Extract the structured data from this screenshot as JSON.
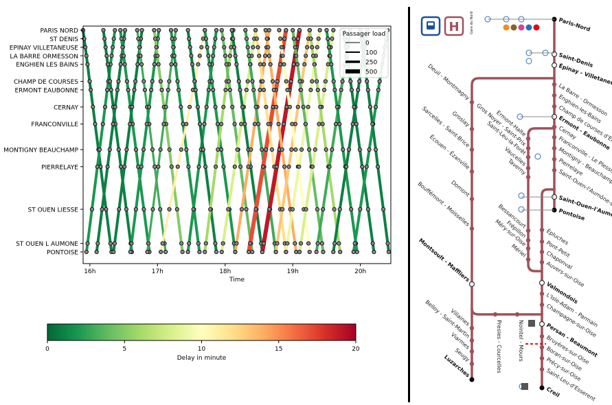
{
  "chart_data": {
    "type": "line",
    "title": "",
    "xlabel": "Time",
    "ylabel": "",
    "x_ticks": [
      "16h",
      "17h",
      "18h",
      "19h",
      "20h"
    ],
    "x_range_hours": [
      15.9,
      20.45
    ],
    "stations": [
      {
        "name": "PARIS NORD",
        "pos": 0
      },
      {
        "name": "ST DENIS",
        "pos": 1
      },
      {
        "name": "EPINAY VILLETANEUSE",
        "pos": 2
      },
      {
        "name": "LA BARRE ORMESSON",
        "pos": 3
      },
      {
        "name": "ENGHIEN LES BAINS",
        "pos": 4
      },
      {
        "name": "CHAMP DE COURSES",
        "pos": 6
      },
      {
        "name": "ERMONT EAUBONNE",
        "pos": 7
      },
      {
        "name": "CERNAY",
        "pos": 9
      },
      {
        "name": "FRANCONVILLE",
        "pos": 11
      },
      {
        "name": "MONTIGNY BEAUCHAMP",
        "pos": 14
      },
      {
        "name": "PIERRELAYE",
        "pos": 16
      },
      {
        "name": "ST OUEN LIESSE",
        "pos": 21
      },
      {
        "name": "ST OUEN L AUMONE",
        "pos": 25
      },
      {
        "name": "PONTOISE",
        "pos": 26
      }
    ],
    "legend": {
      "title": "Passager load",
      "placement": "top-right",
      "entries": [
        {
          "label": "0",
          "width": 1
        },
        {
          "label": "100",
          "width": 2
        },
        {
          "label": "250",
          "width": 3.5
        },
        {
          "label": "500",
          "width": 6
        }
      ]
    },
    "colorbar": {
      "label": "Delay in minute",
      "ticks": [
        "0",
        "5",
        "10",
        "15",
        "20"
      ],
      "range": [
        0,
        20
      ],
      "colormap": "RdYlGn_r"
    },
    "trips": [
      {
        "dir": "out",
        "start": 15.9,
        "dur": 0.42,
        "delay": 1,
        "load": 3
      },
      {
        "dir": "in",
        "start": 15.95,
        "dur": 0.42,
        "delay": 2,
        "load": 3
      },
      {
        "dir": "out",
        "start": 16.2,
        "dur": 0.42,
        "delay": 1,
        "load": 3
      },
      {
        "dir": "in",
        "start": 16.1,
        "dur": 0.42,
        "delay": 1,
        "load": 3
      },
      {
        "dir": "out",
        "start": 16.45,
        "dur": 0.43,
        "delay": 2,
        "load": 3
      },
      {
        "dir": "in",
        "start": 16.35,
        "dur": 0.42,
        "delay": 1,
        "load": 3
      },
      {
        "dir": "out",
        "start": 16.7,
        "dur": 0.42,
        "delay": 3,
        "load": 2
      },
      {
        "dir": "in",
        "start": 16.6,
        "dur": 0.42,
        "delay": 2,
        "load": 3
      },
      {
        "dir": "out",
        "start": 16.95,
        "dur": 0.42,
        "delay": 5,
        "load": 3
      },
      {
        "dir": "in",
        "start": 16.85,
        "dur": 0.42,
        "delay": 3,
        "load": 2
      },
      {
        "dir": "out",
        "start": 17.2,
        "dur": 0.42,
        "delay": 2,
        "load": 3
      },
      {
        "dir": "in",
        "start": 17.05,
        "dur": 0.65,
        "delay": 11,
        "load": 2
      },
      {
        "dir": "in",
        "start": 17.45,
        "dur": 0.42,
        "delay": 2,
        "load": 3
      },
      {
        "dir": "out",
        "start": 17.45,
        "dur": 0.42,
        "delay": 1,
        "load": 3
      },
      {
        "dir": "out",
        "start": 17.7,
        "dur": 0.45,
        "delay": 2,
        "load": 3
      },
      {
        "dir": "in",
        "start": 17.7,
        "dur": 0.42,
        "delay": 6,
        "load": 3
      },
      {
        "dir": "out",
        "start": 17.95,
        "dur": 0.45,
        "delay": 4,
        "load": 3
      },
      {
        "dir": "in",
        "start": 17.95,
        "dur": 0.5,
        "delay": 8,
        "load": 3
      },
      {
        "dir": "out",
        "start": 18.1,
        "dur": 0.45,
        "delay": 1,
        "load": 3
      },
      {
        "dir": "in",
        "start": 18.15,
        "dur": 0.5,
        "delay": 14,
        "load": 3
      },
      {
        "dir": "out",
        "start": 18.3,
        "dur": 0.45,
        "delay": 3,
        "load": 3
      },
      {
        "dir": "in",
        "start": 18.35,
        "dur": 0.55,
        "delay": 17,
        "load": 4
      },
      {
        "dir": "out",
        "start": 18.45,
        "dur": 0.45,
        "delay": 12,
        "load": 3
      },
      {
        "dir": "in",
        "start": 18.55,
        "dur": 0.55,
        "delay": 19,
        "load": 4
      },
      {
        "dir": "out",
        "start": 18.6,
        "dur": 0.45,
        "delay": 14,
        "load": 3
      },
      {
        "dir": "in",
        "start": 18.75,
        "dur": 0.5,
        "delay": 13,
        "load": 3
      },
      {
        "dir": "out",
        "start": 18.8,
        "dur": 0.45,
        "delay": 10,
        "load": 3
      },
      {
        "dir": "in",
        "start": 18.9,
        "dur": 0.5,
        "delay": 9,
        "load": 3
      },
      {
        "dir": "out",
        "start": 19.0,
        "dur": 0.45,
        "delay": 4,
        "load": 3
      },
      {
        "dir": "in",
        "start": 19.1,
        "dur": 0.5,
        "delay": 8,
        "load": 3
      },
      {
        "dir": "out",
        "start": 19.25,
        "dur": 0.45,
        "delay": 6,
        "load": 3
      },
      {
        "dir": "in",
        "start": 19.35,
        "dur": 0.5,
        "delay": 3,
        "load": 3
      },
      {
        "dir": "out",
        "start": 19.5,
        "dur": 0.45,
        "delay": 2,
        "load": 3
      },
      {
        "dir": "in",
        "start": 19.6,
        "dur": 0.5,
        "delay": 1,
        "load": 3
      },
      {
        "dir": "out",
        "start": 19.75,
        "dur": 0.45,
        "delay": 1,
        "load": 3
      },
      {
        "dir": "in",
        "start": 19.9,
        "dur": 0.5,
        "delay": 2,
        "load": 3
      },
      {
        "dir": "out",
        "start": 20.0,
        "dur": 0.42,
        "delay": 1,
        "load": 3
      }
    ]
  },
  "map": {
    "line_color": "#a0505a",
    "left_stations": [
      {
        "name": "Deuil - Montmagny",
        "bold": false
      },
      {
        "name": "Groslay",
        "bold": false
      },
      {
        "name": "Sarcelles - Saint-Brice",
        "bold": false
      },
      {
        "name": "Écouen - Ézanville",
        "bold": false
      },
      {
        "name": "Domont",
        "bold": false
      },
      {
        "name": "Bouffémont - Moisselles",
        "bold": false
      },
      {
        "name": "Montsoult - Maffliers",
        "bold": true
      },
      {
        "name": "Villaines",
        "bold": false
      },
      {
        "name": "Belloy - Saint-Martin",
        "bold": false
      },
      {
        "name": "Viarmes",
        "bold": false
      },
      {
        "name": "Seugy",
        "bold": false
      },
      {
        "name": "Luzarches",
        "bold": true
      }
    ],
    "middle_stations": [
      {
        "name": "Ermont-Halte",
        "bold": false
      },
      {
        "name": "Gros Noyer - Saint-Prix",
        "bold": false
      },
      {
        "name": "Saint-Leu-la-Forêt",
        "bold": false
      },
      {
        "name": "Vaucelles",
        "bold": false
      },
      {
        "name": "Taverny",
        "bold": false
      },
      {
        "name": "Bessancourt",
        "bold": false
      },
      {
        "name": "Frépillon",
        "bold": false
      },
      {
        "name": "Méry-sur-Oise",
        "bold": false
      },
      {
        "name": "Mériel",
        "bold": false
      }
    ],
    "branch_stations": [
      {
        "name": "Presles - Courcelles",
        "bold": false
      },
      {
        "name": "Nointel - Mours",
        "bold": false
      }
    ],
    "right_stations": [
      {
        "name": "Paris-Nord",
        "bold": true
      },
      {
        "name": "Saint-Denis",
        "bold": true
      },
      {
        "name": "Épinay - Villetaneuse",
        "bold": true
      },
      {
        "name": "La Barre - Ormesson",
        "bold": false
      },
      {
        "name": "Enghien-les-Bains",
        "bold": false
      },
      {
        "name": "Champ de courses d'Enghien",
        "bold": false
      },
      {
        "name": "Ermont - Eaubonne",
        "bold": true
      },
      {
        "name": "Cernay",
        "bold": false
      },
      {
        "name": "Franconville - Le Plessis",
        "bold": false
      },
      {
        "name": "Montigny - Beauchamp",
        "bold": false
      },
      {
        "name": "Pierrelaye",
        "bold": false
      },
      {
        "name": "Saint-Ouen-l'Aumône-Liesse",
        "bold": false
      },
      {
        "name": "Saint-Ouen-l'Aumône",
        "bold": true
      },
      {
        "name": "Pontoise",
        "bold": true
      },
      {
        "name": "Épluches",
        "bold": false
      },
      {
        "name": "Pont-Petit",
        "bold": false
      },
      {
        "name": "Chaponval",
        "bold": false
      },
      {
        "name": "Auvers-sur-Oise",
        "bold": false
      },
      {
        "name": "Valmondois",
        "bold": true
      },
      {
        "name": "L'Isle-Adam - Parmain",
        "bold": false
      },
      {
        "name": "Champagne-sur-Oise",
        "bold": false
      },
      {
        "name": "Persan - Beaumont",
        "bold": true
      },
      {
        "name": "Bruyères-sur-Oise",
        "bold": false
      },
      {
        "name": "Boran-sur-Oise",
        "bold": false
      },
      {
        "name": "Précy-sur-Oise",
        "bold": false
      },
      {
        "name": "Saint-Leu-d'Esserent",
        "bold": false
      },
      {
        "name": "Creil",
        "bold": true
      }
    ],
    "logo_letter": "H",
    "gare_du_nord_text": "Gare du Nord"
  }
}
